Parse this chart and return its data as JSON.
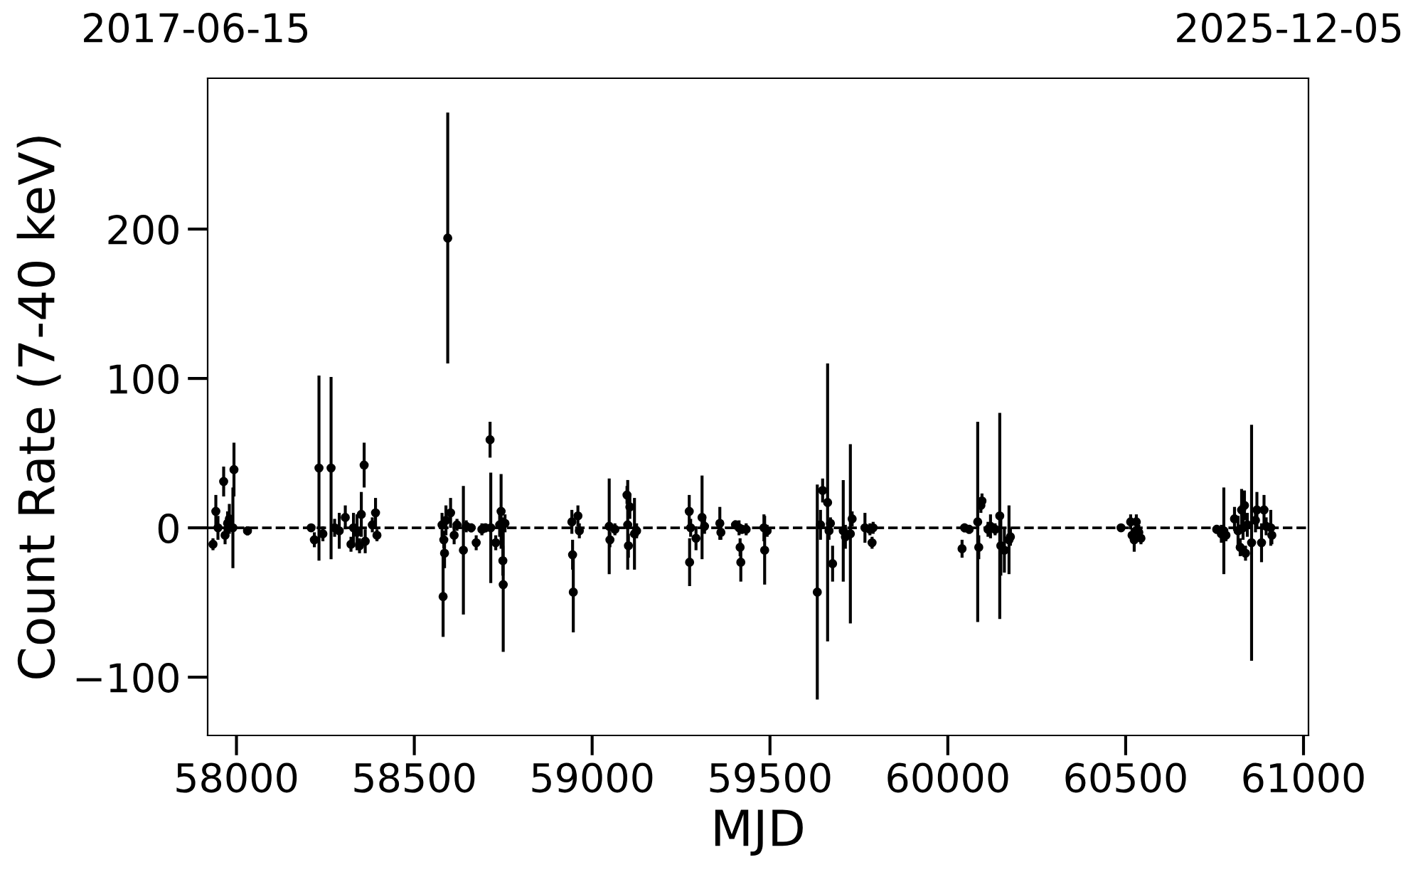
{
  "chart_data": {
    "type": "scatter",
    "xlabel": "MJD",
    "ylabel": "Count Rate (7-40 keV)",
    "annotations": [
      "2017-06-15",
      "2025-12-05"
    ],
    "xlim": [
      57919,
      61014
    ],
    "xticks": [
      58000,
      58500,
      59000,
      59500,
      60000,
      60500,
      61000
    ],
    "ylim": [
      -139,
      301
    ],
    "yticks": [
      {
        "value": -100,
        "label": "−100"
      },
      0,
      100,
      200
    ],
    "color": "#000000",
    "marker": "circle",
    "grid": false,
    "ref_lines": [
      {
        "axis": "y",
        "value": 0,
        "color": "#000000",
        "line_style": "dashed"
      }
    ],
    "x": [
      57934,
      57942,
      57948,
      57964,
      57968,
      57975,
      57980,
      57990,
      57993,
      58031,
      58210,
      58219,
      58232,
      58243,
      58266,
      58276,
      58289,
      58306,
      58322,
      58329,
      58339,
      58346,
      58351,
      58359,
      58362,
      58382,
      58391,
      58395,
      58578,
      58581,
      58583,
      58585,
      58589,
      58594,
      58602,
      58612,
      58620,
      58638,
      58646,
      58660,
      58674,
      58690,
      58700,
      58713,
      58715,
      58729,
      58740,
      58744,
      58749,
      58750,
      58755,
      58943,
      58945,
      58947,
      58960,
      58964,
      59048,
      59050,
      59064,
      59098,
      59100,
      59102,
      59106,
      59119,
      59125,
      59273,
      59274,
      59277,
      59292,
      59309,
      59316,
      59359,
      59362,
      59403,
      59413,
      59416,
      59418,
      59421,
      59433,
      59483,
      59485,
      59492,
      59633,
      59642,
      59648,
      59662,
      59666,
      59670,
      59676,
      59706,
      59712,
      59726,
      59731,
      59767,
      59781,
      59787,
      59790,
      60040,
      60047,
      60060,
      60084,
      60087,
      60093,
      60096,
      60113,
      60120,
      60133,
      60146,
      60149,
      60159,
      60172,
      60176,
      60487,
      60514,
      60518,
      60524,
      60530,
      60537,
      60543,
      60756,
      60769,
      60776,
      60782,
      60806,
      60816,
      60822,
      60826,
      60830,
      60834,
      60837,
      60842,
      60854,
      60865,
      60869,
      60882,
      60889,
      60895,
      60908,
      60911
    ],
    "values": [
      -11,
      11,
      0,
      31,
      -5,
      3,
      6,
      0,
      39,
      -2,
      0,
      -8,
      40,
      -4,
      40,
      0,
      -2,
      7,
      -11,
      0,
      -3,
      -12,
      9,
      42,
      -9,
      2,
      10,
      -5,
      2,
      -46,
      -8,
      -17,
      5,
      194,
      10,
      -5,
      2,
      -15,
      1,
      0,
      -10,
      -1,
      0,
      59,
      0,
      -10,
      2,
      11,
      -22,
      -38,
      3,
      4,
      -18,
      -43,
      8,
      -2,
      1,
      -8,
      -1,
      22,
      2,
      -12,
      14,
      -4,
      -2,
      11,
      -23,
      0,
      -7,
      7,
      1,
      3,
      -3,
      2,
      0,
      -13,
      -23,
      -1,
      -1,
      0,
      -15,
      -2,
      -43,
      2,
      25,
      17,
      -2,
      3,
      -24,
      -2,
      -6,
      -4,
      6,
      0,
      -1,
      -10,
      0,
      -14,
      0,
      -1,
      4,
      -13,
      15,
      18,
      -1,
      1,
      -1,
      8,
      -12,
      -15,
      -8,
      -6,
      0,
      4,
      -5,
      -8,
      4,
      -3,
      -7,
      -1,
      -4,
      -2,
      -5,
      6,
      -2,
      -13,
      12,
      0,
      15,
      -17,
      2,
      -10,
      5,
      12,
      -10,
      12,
      1,
      0,
      -5
    ],
    "errors": [
      4,
      11,
      8,
      10,
      6,
      8,
      10,
      27,
      18,
      3,
      2,
      5,
      62,
      5,
      61,
      6,
      12,
      8,
      5,
      10,
      12,
      5,
      15,
      15,
      8,
      5,
      10,
      4,
      8,
      27,
      6,
      10,
      10,
      84,
      10,
      6,
      4,
      43,
      4,
      3,
      5,
      4,
      3,
      12,
      37,
      5,
      8,
      25,
      10,
      45,
      6,
      8,
      10,
      27,
      7,
      5,
      32,
      5,
      4,
      6,
      30,
      8,
      8,
      24,
      5,
      11,
      16,
      6,
      8,
      28,
      5,
      11,
      5,
      3,
      5,
      6,
      13,
      3,
      4,
      9,
      23,
      4,
      72,
      10,
      8,
      93,
      6,
      4,
      12,
      34,
      8,
      60,
      5,
      10,
      4,
      4,
      4,
      6,
      3,
      3,
      67,
      8,
      5,
      5,
      5,
      8,
      4,
      69,
      20,
      15,
      23,
      6,
      2,
      5,
      5,
      8,
      5,
      5,
      4,
      3,
      6,
      29,
      4,
      8,
      10,
      6,
      14,
      8,
      10,
      5,
      8,
      79,
      8,
      12,
      13,
      10,
      6,
      12,
      6
    ]
  }
}
